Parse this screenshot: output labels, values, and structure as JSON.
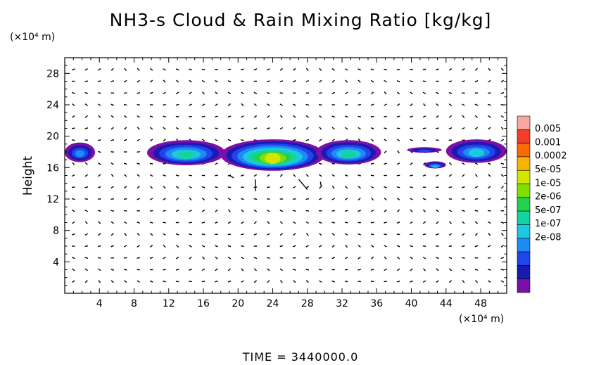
{
  "chart_data": {
    "type": "heatmap",
    "title": "NH3-s Cloud & Rain Mixing Ratio [kg/kg]",
    "xlabel": "",
    "x_unit": "(×10⁴ m)",
    "ylabel": "Height",
    "y_unit": "(×10⁴ m)",
    "xlim": [
      0,
      51
    ],
    "ylim": [
      0,
      30
    ],
    "x_ticks": [
      "4",
      "8",
      "12",
      "16",
      "20",
      "24",
      "28",
      "32",
      "36",
      "40",
      "44",
      "48"
    ],
    "y_ticks": [
      "4",
      "8",
      "12",
      "16",
      "20",
      "24",
      "28"
    ],
    "colorbar": {
      "labels": [
        "0.005",
        "0.001",
        "0.0002",
        "5e-05",
        "1e-05",
        "2e-06",
        "5e-07",
        "1e-07",
        "2e-08"
      ],
      "colors": [
        "#f7a8a0",
        "#f03e2a",
        "#fa6a00",
        "#f8b400",
        "#d4e600",
        "#7fe000",
        "#22d24e",
        "#14d3a0",
        "#1ec8e0",
        "#1d8cf5",
        "#2244ee",
        "#1a1ab0",
        "#7a10a8"
      ]
    },
    "cloud_blobs": [
      {
        "x": [
          0,
          3.5
        ],
        "y": [
          16.7,
          19.2
        ],
        "level": 3
      },
      {
        "x": [
          9.5,
          18.5
        ],
        "y": [
          16.3,
          19.5
        ],
        "level": 5
      },
      {
        "x": [
          18,
          30
        ],
        "y": [
          15.6,
          19.6
        ],
        "level": 8
      },
      {
        "x": [
          29,
          36.5
        ],
        "y": [
          16.4,
          19.5
        ],
        "level": 5
      },
      {
        "x": [
          39.5,
          43.5
        ],
        "y": [
          17.9,
          18.6
        ],
        "level": 2
      },
      {
        "x": [
          41.5,
          44
        ],
        "y": [
          15.9,
          16.8
        ],
        "level": 4
      },
      {
        "x": [
          44,
          51
        ],
        "y": [
          16.6,
          19.6
        ],
        "level": 4
      }
    ],
    "time_label": "TIME  =  3440000.0"
  }
}
